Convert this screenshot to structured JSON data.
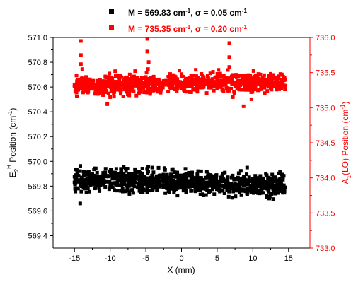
{
  "chart_data": {
    "type": "scatter",
    "legend_position": "top-center",
    "x": {
      "label": "X (mm)",
      "range": [
        -18,
        18
      ],
      "ticks": [
        -15,
        -10,
        -5,
        0,
        5,
        10,
        15
      ],
      "tick_labels": [
        "-15",
        "-10",
        "-5",
        "0",
        "5",
        "10",
        "15"
      ]
    },
    "y_left": {
      "label": "E2H Position (cm-1)",
      "label_parts": [
        "E",
        "2",
        "H",
        " Position (cm",
        "-1",
        ")"
      ],
      "range": [
        569.3,
        571.0
      ],
      "ticks": [
        569.4,
        569.6,
        569.8,
        570.0,
        570.2,
        570.4,
        570.6,
        570.8,
        571.0
      ],
      "tick_labels": [
        "569.4",
        "569.6",
        "569.8",
        "570.0",
        "570.2",
        "570.4",
        "570.6",
        "570.8",
        "571.0"
      ],
      "color": "#000000"
    },
    "y_right": {
      "label": "A1(LO) Position (cm-1)",
      "label_parts": [
        "A",
        "1",
        "(LO) Position (cm",
        "-1",
        ")"
      ],
      "range": [
        733.0,
        736.0
      ],
      "ticks": [
        733.0,
        733.5,
        734.0,
        734.5,
        735.0,
        735.5,
        736.0
      ],
      "tick_labels": [
        "733.0",
        "733.5",
        "734.0",
        "734.5",
        "735.0",
        "735.5",
        "736.0"
      ],
      "color": "#ff0000"
    },
    "series": [
      {
        "name": "M = 569.83 cm-1, σ = 0.05 cm-1",
        "legend_parts": [
          "M = 569.83 cm",
          "-1",
          ", σ = 0.05 cm",
          "-1"
        ],
        "color": "#000000",
        "axis": "left",
        "x_range": [
          -15,
          14.5
        ],
        "mean": 569.83,
        "sigma": 0.05,
        "points": [
          [
            -15.0,
            569.83
          ],
          [
            -14.5,
            569.78
          ],
          [
            -14.0,
            569.87
          ],
          [
            -13.5,
            569.8
          ],
          [
            -13.0,
            569.85
          ],
          [
            -12.5,
            569.9
          ],
          [
            -12.0,
            569.82
          ],
          [
            -11.5,
            569.76
          ],
          [
            -11.0,
            569.88
          ],
          [
            -10.5,
            569.84
          ],
          [
            -10.0,
            569.79
          ],
          [
            -9.5,
            569.86
          ],
          [
            -9.0,
            569.81
          ],
          [
            -8.5,
            569.91
          ],
          [
            -8.0,
            569.83
          ],
          [
            -7.5,
            569.77
          ],
          [
            -7.0,
            569.85
          ],
          [
            -6.5,
            569.89
          ],
          [
            -6.0,
            569.82
          ],
          [
            -5.5,
            569.8
          ],
          [
            -5.0,
            569.86
          ],
          [
            -4.5,
            569.84
          ],
          [
            -4.0,
            569.78
          ],
          [
            -3.5,
            569.88
          ],
          [
            -3.0,
            569.83
          ],
          [
            -2.5,
            569.81
          ],
          [
            -2.0,
            569.87
          ],
          [
            -1.5,
            569.85
          ],
          [
            -1.0,
            569.79
          ],
          [
            -0.5,
            569.84
          ],
          [
            0.0,
            569.86
          ],
          [
            0.5,
            569.82
          ],
          [
            1.0,
            569.8
          ],
          [
            1.5,
            569.88
          ],
          [
            2.0,
            569.84
          ],
          [
            2.5,
            569.78
          ],
          [
            3.0,
            569.85
          ],
          [
            3.5,
            569.83
          ],
          [
            4.0,
            569.89
          ],
          [
            4.5,
            569.81
          ],
          [
            5.0,
            569.84
          ],
          [
            5.5,
            569.86
          ],
          [
            6.0,
            569.79
          ],
          [
            6.5,
            569.83
          ],
          [
            7.0,
            569.87
          ],
          [
            7.5,
            569.82
          ],
          [
            8.0,
            569.8
          ],
          [
            8.5,
            569.85
          ],
          [
            9.0,
            569.83
          ],
          [
            9.5,
            569.78
          ],
          [
            10.0,
            569.86
          ],
          [
            10.5,
            569.81
          ],
          [
            11.0,
            569.84
          ],
          [
            11.5,
            569.79
          ],
          [
            12.0,
            569.83
          ],
          [
            12.5,
            569.8
          ],
          [
            13.0,
            569.77
          ],
          [
            13.5,
            569.82
          ],
          [
            14.0,
            569.76
          ],
          [
            14.5,
            569.79
          ],
          [
            -14.2,
            569.66
          ],
          [
            12.3,
            569.7
          ],
          [
            9.2,
            569.95
          ],
          [
            -4.1,
            569.95
          ],
          [
            -8.5,
            569.94
          ]
        ]
      },
      {
        "name": "M = 735.35 cm-1, σ = 0.20 cm-1",
        "legend_parts": [
          "M = 735.35 cm",
          "-1",
          ", σ = 0.20 cm",
          "-1"
        ],
        "color": "#ff0000",
        "axis": "right",
        "x_range": [
          -15,
          14.5
        ],
        "mean": 735.35,
        "sigma": 0.2,
        "points": [
          [
            -15.0,
            735.32
          ],
          [
            -14.5,
            735.4
          ],
          [
            -14.0,
            735.28
          ],
          [
            -13.5,
            735.35
          ],
          [
            -13.0,
            735.3
          ],
          [
            -12.5,
            735.33
          ],
          [
            -12.0,
            735.26
          ],
          [
            -11.5,
            735.24
          ],
          [
            -11.0,
            735.18
          ],
          [
            -10.5,
            735.22
          ],
          [
            -10.0,
            735.15
          ],
          [
            -9.5,
            735.2
          ],
          [
            -9.0,
            735.28
          ],
          [
            -8.5,
            735.25
          ],
          [
            -8.0,
            735.31
          ],
          [
            -7.5,
            735.27
          ],
          [
            -7.0,
            735.3
          ],
          [
            -6.5,
            735.34
          ],
          [
            -6.0,
            735.38
          ],
          [
            -5.5,
            735.36
          ],
          [
            -5.0,
            735.42
          ],
          [
            -4.5,
            735.39
          ],
          [
            -4.0,
            735.37
          ],
          [
            -3.5,
            735.33
          ],
          [
            -3.0,
            735.35
          ],
          [
            -2.5,
            735.38
          ],
          [
            -2.0,
            735.34
          ],
          [
            -1.5,
            735.36
          ],
          [
            -1.0,
            735.4
          ],
          [
            -0.5,
            735.37
          ],
          [
            0.0,
            735.35
          ],
          [
            0.5,
            735.38
          ],
          [
            1.0,
            735.36
          ],
          [
            1.5,
            735.39
          ],
          [
            2.0,
            735.37
          ],
          [
            2.5,
            735.4
          ],
          [
            3.0,
            735.36
          ],
          [
            3.5,
            735.38
          ],
          [
            4.0,
            735.35
          ],
          [
            4.5,
            735.37
          ],
          [
            5.0,
            735.39
          ],
          [
            5.5,
            735.36
          ],
          [
            6.0,
            735.38
          ],
          [
            6.5,
            735.42
          ],
          [
            7.0,
            735.37
          ],
          [
            7.5,
            735.35
          ],
          [
            8.0,
            735.38
          ],
          [
            8.5,
            735.36
          ],
          [
            9.0,
            735.34
          ],
          [
            9.5,
            735.37
          ],
          [
            10.0,
            735.35
          ],
          [
            10.5,
            735.38
          ],
          [
            11.0,
            735.33
          ],
          [
            11.5,
            735.36
          ],
          [
            12.0,
            735.34
          ],
          [
            12.5,
            735.32
          ],
          [
            13.0,
            735.35
          ],
          [
            13.5,
            735.3
          ],
          [
            14.0,
            735.28
          ],
          [
            14.5,
            735.26
          ],
          [
            -14.1,
            735.95
          ],
          [
            -14.1,
            735.75
          ],
          [
            -14.1,
            735.62
          ],
          [
            -13.9,
            735.55
          ],
          [
            -4.8,
            735.98
          ],
          [
            -4.8,
            735.8
          ],
          [
            -4.6,
            735.65
          ],
          [
            -4.7,
            735.55
          ],
          [
            6.7,
            735.92
          ],
          [
            6.7,
            735.72
          ],
          [
            6.7,
            735.58
          ],
          [
            -10.4,
            735.05
          ],
          [
            7.2,
            735.15
          ],
          [
            9.8,
            735.12
          ],
          [
            8.7,
            735.02
          ],
          [
            -9.3,
            735.52
          ],
          [
            -4.9,
            735.5
          ],
          [
            2.0,
            735.54
          ]
        ]
      }
    ]
  }
}
